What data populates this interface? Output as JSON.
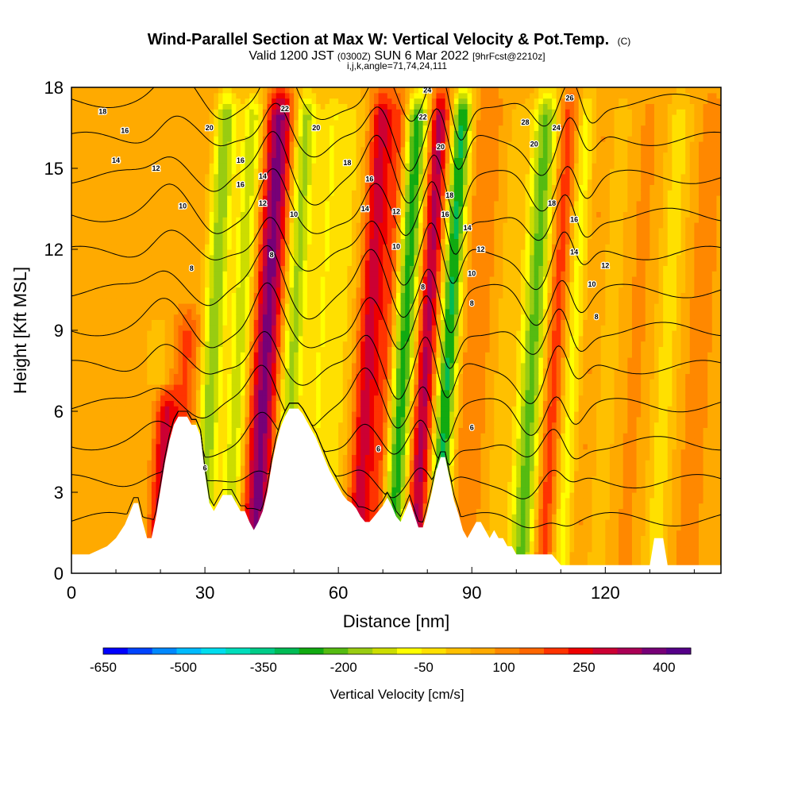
{
  "chart_data": {
    "type": "heatmap",
    "title": "Wind-Parallel Section at Max W: Vertical Velocity & Pot.Temp.",
    "title_mark": "(C)",
    "subtitle_parts": [
      "Valid 1200 JST",
      "(0300Z)",
      "SUN 6 Mar 2022",
      "[9hrFcst@2210z]"
    ],
    "index_line": "i,j,k,angle=71,74,24,111",
    "xlabel": "Distance [nm]",
    "ylabel": "Height [Kft MSL]",
    "xlim": [
      0,
      146
    ],
    "ylim": [
      0,
      18
    ],
    "xticks": [
      0,
      30,
      60,
      90,
      120
    ],
    "yticks": [
      0,
      3,
      6,
      9,
      12,
      15,
      18
    ],
    "colorbar": {
      "label": "Vertical Velocity [cm/s]",
      "tick_labels": [
        "-650",
        "-500",
        "-350",
        "-200",
        "-50",
        "100",
        "250",
        "400"
      ],
      "tick_values": [
        -650,
        -500,
        -350,
        -200,
        -50,
        100,
        250,
        400
      ],
      "range": [
        -650,
        450
      ],
      "colors": [
        "#0000ff",
        "#0044ff",
        "#0088ff",
        "#00bbff",
        "#00ddee",
        "#00ddbb",
        "#00cc88",
        "#00bb55",
        "#11aa11",
        "#55bb11",
        "#99cc11",
        "#ccdd00",
        "#ffff00",
        "#ffe000",
        "#ffc000",
        "#ffaa00",
        "#ff8800",
        "#ff6600",
        "#ff3300",
        "#ee0000",
        "#cc0033",
        "#aa0055",
        "#770077",
        "#550088"
      ]
    },
    "velocity_bands": [
      {
        "x": 19,
        "w": -50,
        "width": 4,
        "ztop": 10
      },
      {
        "x": 21,
        "w": 230,
        "width": 2.5,
        "ztop": 7
      },
      {
        "x": 25,
        "w": 120,
        "width": 3,
        "ztop": 10
      },
      {
        "x": 31,
        "w": -250,
        "width": 2.5,
        "ztop": 18
      },
      {
        "x": 37,
        "w": -200,
        "width": 2.5,
        "ztop": 18
      },
      {
        "x": 43,
        "w": 310,
        "width": 3,
        "ztop": 18
      },
      {
        "x": 49,
        "w": -230,
        "width": 2.5,
        "ztop": 18
      },
      {
        "x": 55,
        "w": -120,
        "width": 3,
        "ztop": 18
      },
      {
        "x": 60,
        "w": -80,
        "width": 3,
        "ztop": 18
      },
      {
        "x": 66,
        "w": 220,
        "width": 2.5,
        "ztop": 18
      },
      {
        "x": 70,
        "w": 120,
        "width": 2,
        "ztop": 18
      },
      {
        "x": 74,
        "w": -330,
        "width": 2.5,
        "ztop": 18
      },
      {
        "x": 79,
        "w": 260,
        "width": 2.2,
        "ztop": 18
      },
      {
        "x": 84,
        "w": -360,
        "width": 2.2,
        "ztop": 18
      },
      {
        "x": 90,
        "w": 60,
        "width": 3,
        "ztop": 18
      },
      {
        "x": 96,
        "w": -40,
        "width": 3,
        "ztop": 18
      },
      {
        "x": 103,
        "w": -280,
        "width": 3,
        "ztop": 18
      },
      {
        "x": 108,
        "w": 150,
        "width": 2.5,
        "ztop": 18
      },
      {
        "x": 112,
        "w": -160,
        "width": 2.5,
        "ztop": 18
      },
      {
        "x": 115,
        "w": 40,
        "width": 3,
        "ztop": 18
      },
      {
        "x": 120,
        "w": -60,
        "width": 3,
        "ztop": 18
      },
      {
        "x": 126,
        "w": 20,
        "width": 4,
        "ztop": 18
      },
      {
        "x": 133,
        "w": -100,
        "width": 3,
        "ztop": 18
      },
      {
        "x": 140,
        "w": 30,
        "width": 3,
        "ztop": 18
      }
    ],
    "terrain": {
      "x": [
        0,
        4,
        8,
        10,
        12,
        14,
        15,
        16,
        17,
        18,
        19,
        20,
        21,
        22,
        23,
        24,
        25,
        26,
        27,
        28,
        29,
        30,
        31,
        32,
        33,
        34,
        35,
        36,
        37,
        38,
        39,
        40,
        41,
        42,
        43,
        44,
        45,
        46,
        47,
        48,
        49,
        50,
        51,
        52,
        53,
        54,
        55,
        56,
        57,
        58,
        59,
        60,
        61,
        62,
        63,
        64,
        65,
        66,
        67,
        68,
        69,
        70,
        71,
        72,
        73,
        74,
        75,
        76,
        77,
        78,
        79,
        80,
        81,
        82,
        83,
        84,
        85,
        86,
        87,
        88,
        89,
        90,
        91,
        92,
        93,
        94,
        95,
        96,
        97,
        98,
        99,
        100,
        102,
        104,
        106,
        108,
        110,
        112,
        114,
        116,
        118,
        120,
        122,
        124,
        126,
        128,
        129,
        130,
        131,
        132,
        133,
        134,
        136,
        140,
        146
      ],
      "z": [
        0.7,
        0.7,
        1.0,
        1.3,
        1.8,
        2.6,
        2.6,
        1.9,
        1.3,
        1.3,
        2.1,
        3.1,
        4.1,
        4.9,
        5.5,
        5.8,
        5.8,
        5.8,
        5.5,
        5.5,
        5.1,
        3.7,
        2.6,
        2.3,
        2.6,
        2.9,
        2.9,
        2.9,
        2.6,
        2.3,
        2.3,
        1.9,
        1.6,
        1.9,
        2.3,
        3.0,
        4.0,
        4.8,
        5.4,
        5.8,
        6.1,
        6.1,
        6.1,
        5.9,
        5.6,
        5.3,
        5.0,
        4.6,
        4.2,
        3.8,
        3.5,
        3.2,
        2.9,
        2.7,
        2.6,
        2.4,
        2.1,
        1.9,
        1.9,
        2.1,
        2.3,
        2.5,
        2.8,
        2.5,
        2.1,
        1.9,
        2.3,
        2.7,
        2.2,
        1.7,
        1.7,
        2.3,
        3.0,
        3.8,
        4.3,
        4.3,
        3.5,
        2.7,
        2.2,
        1.6,
        1.3,
        1.6,
        1.9,
        1.9,
        1.6,
        1.3,
        1.6,
        1.3,
        1.3,
        1.0,
        1.0,
        0.7,
        0.7,
        0.7,
        0.7,
        0.7,
        0.3,
        0.3,
        0.3,
        0.3,
        0.3,
        0.3,
        0.3,
        0.3,
        0.3,
        0.3,
        0.3,
        0.3,
        1.3,
        1.3,
        1.3,
        0.3,
        0.3,
        0.3,
        0.3
      ]
    },
    "theta_levels": [
      6,
      8,
      10,
      12,
      14,
      16,
      18,
      20,
      22,
      24,
      26,
      28
    ],
    "theta_waves": [
      {
        "x": 20,
        "a": 0.9,
        "width": 5
      },
      {
        "x": 30,
        "a": -0.5,
        "width": 4
      },
      {
        "x": 43,
        "a": 1.6,
        "width": 4
      },
      {
        "x": 52,
        "a": -0.8,
        "width": 5
      },
      {
        "x": 66,
        "a": 1.3,
        "width": 3.5
      },
      {
        "x": 73,
        "a": -1.0,
        "width": 3
      },
      {
        "x": 79,
        "a": 1.1,
        "width": 2.5
      },
      {
        "x": 84,
        "a": -1.4,
        "width": 2.5
      },
      {
        "x": 103,
        "a": -1.2,
        "width": 4
      },
      {
        "x": 109,
        "a": 0.9,
        "width": 3
      },
      {
        "x": 113,
        "a": -0.8,
        "width": 3
      }
    ],
    "theta_labels": [
      {
        "text": "18",
        "x": 7,
        "z": 17.1
      },
      {
        "text": "16",
        "x": 12,
        "z": 16.4
      },
      {
        "text": "14",
        "x": 10,
        "z": 15.3
      },
      {
        "text": "12",
        "x": 19,
        "z": 15.0
      },
      {
        "text": "10",
        "x": 25,
        "z": 13.6
      },
      {
        "text": "8",
        "x": 27,
        "z": 11.3
      },
      {
        "text": "20",
        "x": 31,
        "z": 16.5
      },
      {
        "text": "16",
        "x": 38,
        "z": 15.3
      },
      {
        "text": "16",
        "x": 38,
        "z": 14.4
      },
      {
        "text": "14",
        "x": 43,
        "z": 14.7
      },
      {
        "text": "12",
        "x": 43,
        "z": 13.7
      },
      {
        "text": "8",
        "x": 45,
        "z": 11.8
      },
      {
        "text": "22",
        "x": 48,
        "z": 17.2
      },
      {
        "text": "20",
        "x": 55,
        "z": 16.5
      },
      {
        "text": "10",
        "x": 50,
        "z": 13.3
      },
      {
        "text": "18",
        "x": 62,
        "z": 15.2
      },
      {
        "text": "16",
        "x": 67,
        "z": 14.6
      },
      {
        "text": "14",
        "x": 66,
        "z": 13.5
      },
      {
        "text": "12",
        "x": 73,
        "z": 13.4
      },
      {
        "text": "10",
        "x": 73,
        "z": 12.1
      },
      {
        "text": "8",
        "x": 79,
        "z": 10.6
      },
      {
        "text": "24",
        "x": 80,
        "z": 17.9
      },
      {
        "text": "22",
        "x": 79,
        "z": 16.9
      },
      {
        "text": "20",
        "x": 83,
        "z": 15.8
      },
      {
        "text": "18",
        "x": 85,
        "z": 14.0
      },
      {
        "text": "16",
        "x": 84,
        "z": 13.3
      },
      {
        "text": "14",
        "x": 89,
        "z": 12.8
      },
      {
        "text": "12",
        "x": 92,
        "z": 12.0
      },
      {
        "text": "10",
        "x": 90,
        "z": 11.1
      },
      {
        "text": "8",
        "x": 90,
        "z": 10.0
      },
      {
        "text": "26",
        "x": 112,
        "z": 17.6
      },
      {
        "text": "28",
        "x": 102,
        "z": 16.7
      },
      {
        "text": "24",
        "x": 109,
        "z": 16.5
      },
      {
        "text": "20",
        "x": 104,
        "z": 15.9
      },
      {
        "text": "18",
        "x": 108,
        "z": 13.7
      },
      {
        "text": "16",
        "x": 113,
        "z": 13.1
      },
      {
        "text": "14",
        "x": 113,
        "z": 11.9
      },
      {
        "text": "12",
        "x": 120,
        "z": 11.4
      },
      {
        "text": "10",
        "x": 117,
        "z": 10.7
      },
      {
        "text": "8",
        "x": 118,
        "z": 9.5
      },
      {
        "text": "6",
        "x": 30,
        "z": 3.9
      },
      {
        "text": "6",
        "x": 69,
        "z": 4.6
      },
      {
        "text": "6",
        "x": 90,
        "z": 5.4
      }
    ]
  }
}
